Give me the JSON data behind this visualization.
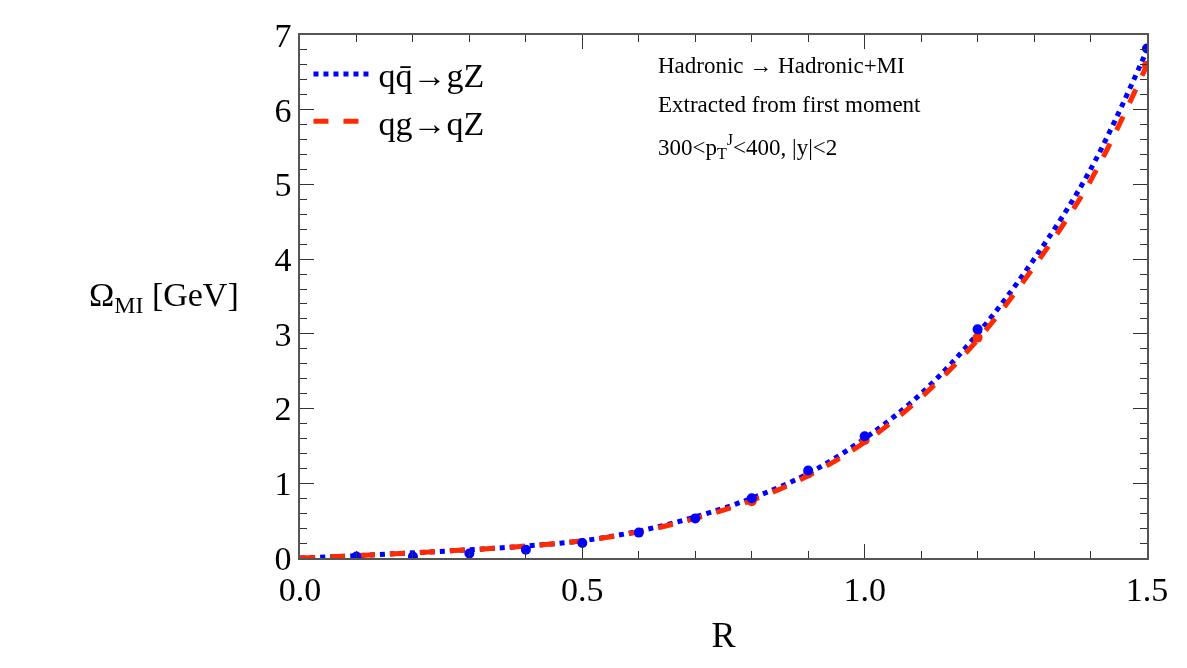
{
  "chart_data": {
    "type": "line",
    "xlabel": "R",
    "ylabel": "Ω$_{MI}$ [GeV]",
    "xlim": [
      0,
      1.5
    ],
    "ylim": [
      0,
      7
    ],
    "xticks": [
      {
        "value": 0,
        "label": "0.0"
      },
      {
        "value": 0.5,
        "label": "0.5"
      },
      {
        "value": 1.0,
        "label": "1.0"
      },
      {
        "value": 1.5,
        "label": "1.5"
      }
    ],
    "yticks": [
      0,
      1,
      2,
      3,
      4,
      5,
      6,
      7
    ],
    "legend": "top left",
    "annotations": [
      "Hadronic → Hadronic+MI",
      "Extracted from first moment",
      "300<p$_{T}$$^{J}$<400, |y|<2"
    ],
    "series": [
      {
        "name": "qq̄→gZ",
        "color": "#0000ff",
        "line_style": "dotted",
        "marker": "none",
        "x": [
          0,
          0.1,
          0.2,
          0.3,
          0.4,
          0.5,
          0.6,
          0.7,
          0.8,
          0.9,
          1.0,
          1.1,
          1.2,
          1.3,
          1.4,
          1.5
        ],
        "values": [
          0,
          0.03,
          0.07,
          0.11,
          0.16,
          0.23,
          0.36,
          0.55,
          0.8,
          1.13,
          1.6,
          2.2,
          3.0,
          4.0,
          5.2,
          6.8
        ]
      },
      {
        "name": "qg→qZ",
        "color": "#ff2a00",
        "line_style": "dashed",
        "marker": "none",
        "x": [
          0,
          0.1,
          0.2,
          0.3,
          0.4,
          0.5,
          0.6,
          0.7,
          0.8,
          0.9,
          1.0,
          1.1,
          1.2,
          1.3,
          1.4,
          1.5
        ],
        "values": [
          0,
          0.03,
          0.07,
          0.11,
          0.16,
          0.23,
          0.35,
          0.53,
          0.77,
          1.1,
          1.55,
          2.15,
          2.92,
          3.9,
          5.05,
          6.6
        ]
      },
      {
        "type": "scatter",
        "color": "#ff2a00",
        "marker": "circle",
        "x": [
          0.8,
          0.9,
          1.0,
          1.2,
          1.5
        ],
        "values": [
          0.76,
          1.13,
          1.58,
          2.95,
          6.59
        ]
      },
      {
        "type": "scatter",
        "color": "#0000ff",
        "marker": "circle",
        "x": [
          0.1,
          0.2,
          0.3,
          0.4,
          0.5,
          0.6,
          0.7,
          0.8,
          0.9,
          1.0,
          1.2,
          1.5
        ],
        "values": [
          0.02,
          0.02,
          0.06,
          0.11,
          0.2,
          0.34,
          0.53,
          0.8,
          1.17,
          1.63,
          3.06,
          6.82
        ]
      }
    ]
  }
}
